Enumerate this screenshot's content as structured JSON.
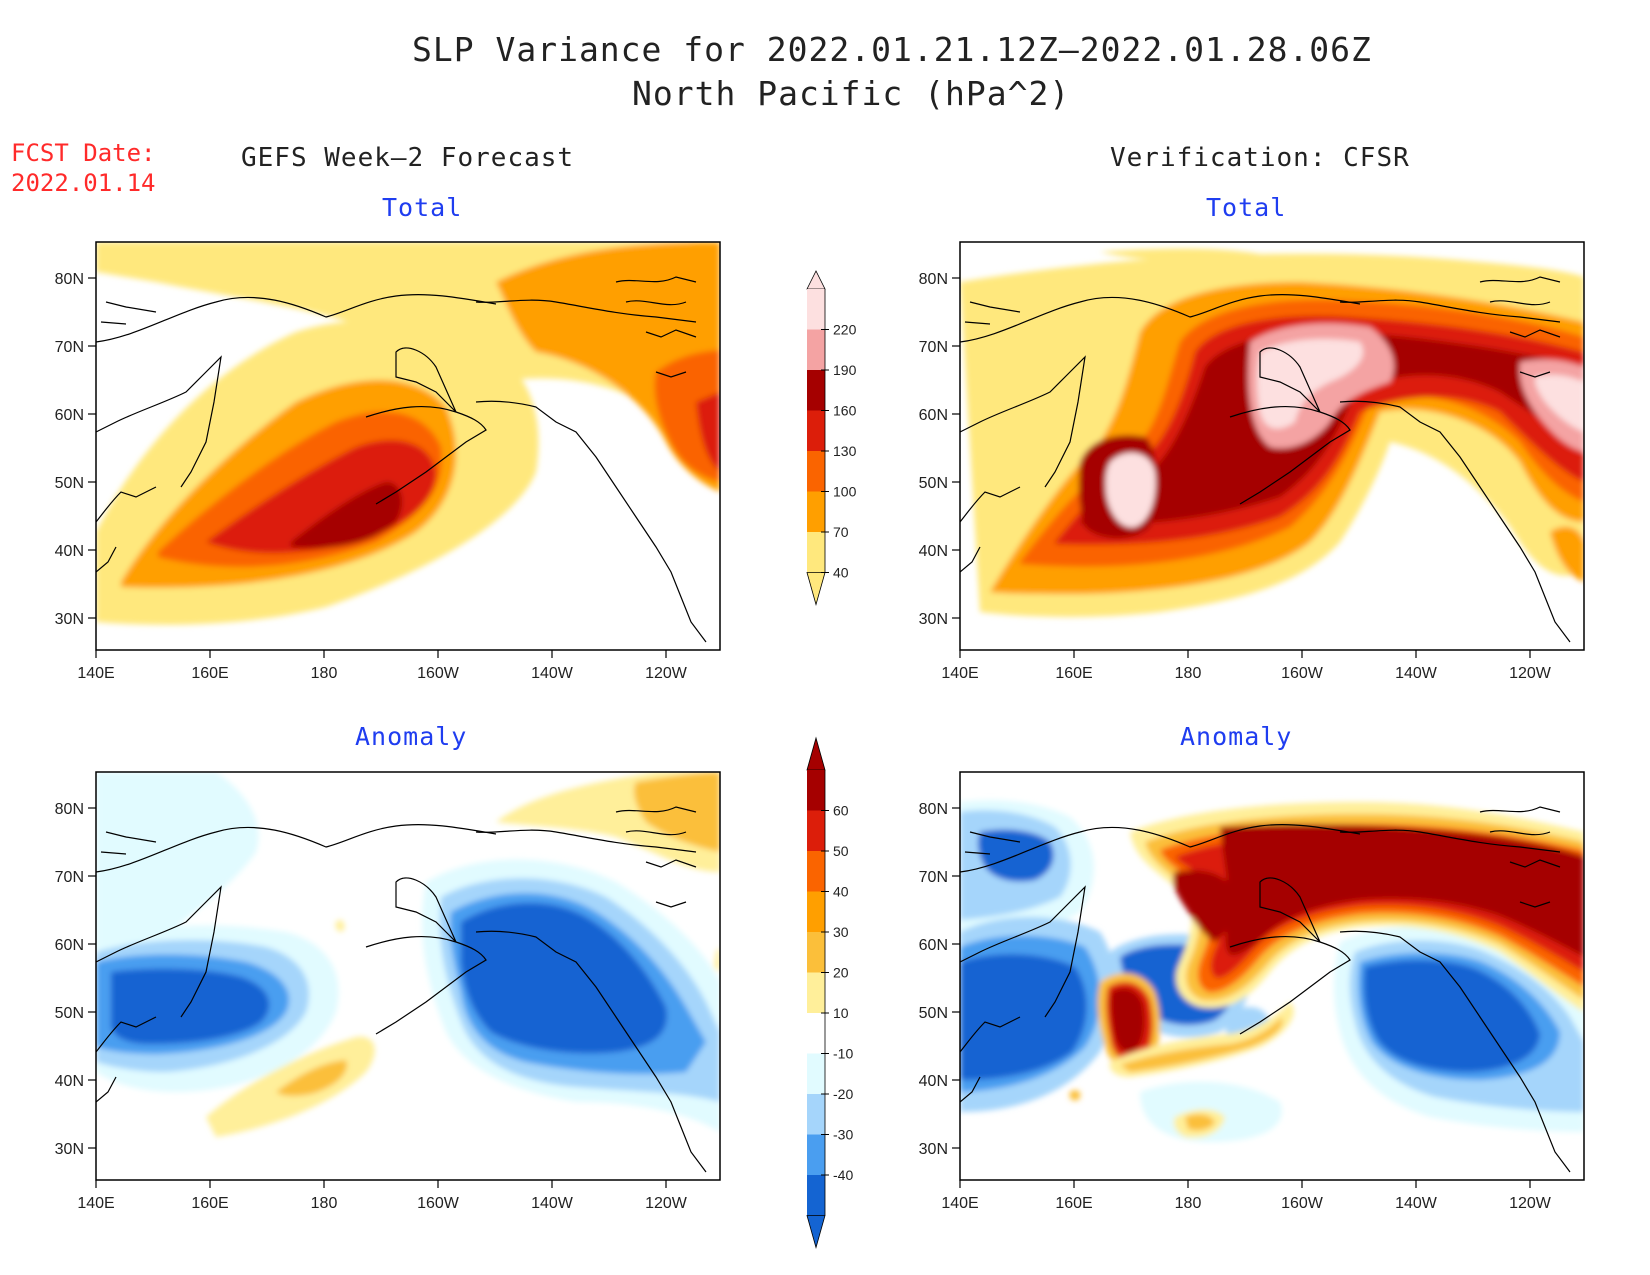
{
  "title": {
    "line1": "SLP Variance for 2022.01.21.12Z–2022.01.28.06Z",
    "line2": "North Pacific (hPa^2)"
  },
  "forecast_date": {
    "label": "FCST Date:",
    "value": "2022.01.14"
  },
  "columns": {
    "left": "GEFS Week–2 Forecast",
    "right": "Verification: CFSR"
  },
  "panels": {
    "top_left": "Total",
    "top_right": "Total",
    "bottom_left": "Anomaly",
    "bottom_right": "Anomaly"
  },
  "axes": {
    "lon_ticks": [
      "140E",
      "160E",
      "180",
      "160W",
      "140W",
      "120W"
    ],
    "lat_ticks": [
      "80N",
      "70N",
      "60N",
      "50N",
      "40N",
      "30N"
    ]
  },
  "total_colorbar": {
    "labels": [
      "220",
      "190",
      "160",
      "130",
      "100",
      "70",
      "40"
    ],
    "colors": [
      "#fde0e0",
      "#f4a3a3",
      "#a50000",
      "#dc1e0a",
      "#fa6400",
      "#ff9f00",
      "#ffe87d"
    ]
  },
  "anomaly_colorbar": {
    "labels": [
      "60",
      "50",
      "40",
      "30",
      "20",
      "10",
      "-10",
      "-20",
      "-30",
      "-40"
    ],
    "colors": [
      "#a50000",
      "#dc1e0a",
      "#fa6400",
      "#ff9f00",
      "#fbbf3a",
      "#ffef9a",
      "#ffffff",
      "#e1fbff",
      "#a5d5fb",
      "#4a9ef0",
      "#1464d2"
    ]
  },
  "palette": {
    "title_red": "#ff2a2a",
    "panel_blue": "#1f3df0"
  }
}
